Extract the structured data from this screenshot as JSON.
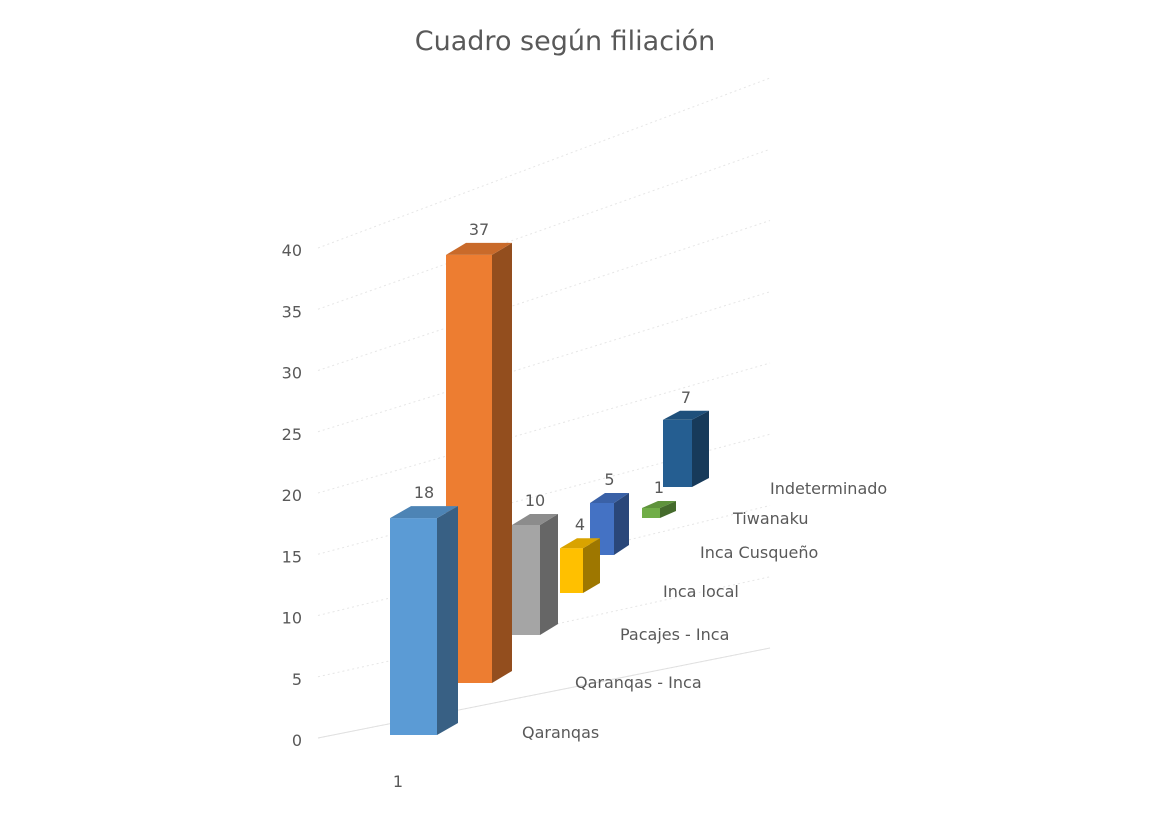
{
  "chart_data": {
    "type": "bar",
    "title": "Cuadro según filiación",
    "xlabel": "",
    "ylabel": "",
    "ylim": [
      0,
      40
    ],
    "yticks": [
      0,
      5,
      10,
      15,
      20,
      25,
      30,
      35,
      40
    ],
    "categories": [
      "1"
    ],
    "series": [
      {
        "name": "Qaranqas",
        "values": [
          18
        ],
        "color": "#5B9BD5"
      },
      {
        "name": "Qaranqas - Inca",
        "values": [
          37
        ],
        "color": "#ED7D31"
      },
      {
        "name": "Pacajes - Inca",
        "values": [
          10
        ],
        "color": "#A5A5A5"
      },
      {
        "name": "Inca local",
        "values": [
          4
        ],
        "color": "#FFC000"
      },
      {
        "name": "Inca Cusqueño",
        "values": [
          5
        ],
        "color": "#4472C4"
      },
      {
        "name": "Tiwanaku",
        "values": [
          1
        ],
        "color": "#70AD47"
      },
      {
        "name": "Indeterminado",
        "values": [
          7
        ],
        "color": "#255E91"
      }
    ],
    "grid": true,
    "chart_style": "3d-column"
  }
}
